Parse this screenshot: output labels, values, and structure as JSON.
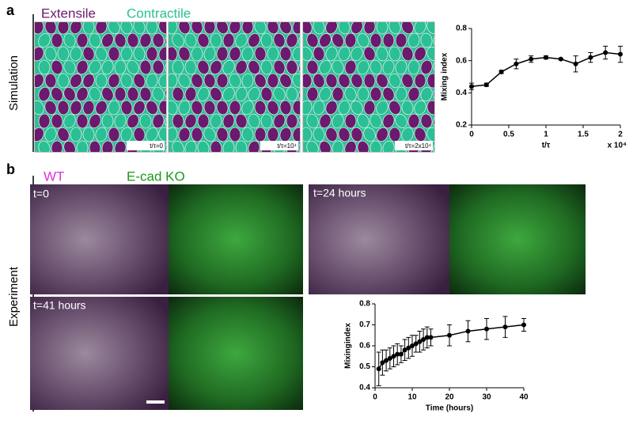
{
  "panel_a": {
    "label": "a",
    "row_title": "Simulation",
    "legend": [
      {
        "name": "Extensile",
        "color": "#6b1a6e"
      },
      {
        "name": "Contractile",
        "color": "#2bbf95"
      }
    ],
    "snapshots": [
      "t/τ=0",
      "t/τ=10⁴",
      "t/τ=2x10⁴"
    ]
  },
  "panel_b": {
    "label": "b",
    "row_title": "Experiment",
    "legend": [
      {
        "name": "WT",
        "color": "#e030e0"
      },
      {
        "name": "E-cad KO",
        "color": "#1a9a1a"
      }
    ],
    "snapshots": [
      "t=0",
      "t=24 hours",
      "t=41 hours"
    ]
  },
  "chart_data": [
    {
      "type": "line",
      "x_label": "t/τ",
      "y_label": "Mixing index",
      "x_multiplier": "x 10⁴",
      "color": "#000000",
      "x": [
        0,
        0.2,
        0.4,
        0.6,
        0.8,
        1.0,
        1.2,
        1.4,
        1.6,
        1.8,
        2.0
      ],
      "values": [
        0.44,
        0.45,
        0.53,
        0.58,
        0.61,
        0.62,
        0.61,
        0.58,
        0.62,
        0.65,
        0.64
      ],
      "errors": [
        0.02,
        0.01,
        0.01,
        0.03,
        0.02,
        0.01,
        0.005,
        0.05,
        0.03,
        0.04,
        0.05
      ],
      "xlim": [
        0,
        2
      ],
      "xticks": [
        0,
        0.5,
        1,
        1.5,
        2
      ],
      "ylim": [
        0.2,
        0.8
      ],
      "yticks": [
        0.2,
        0.4,
        0.6,
        0.8
      ]
    },
    {
      "type": "line",
      "x_label": "Time (hours)",
      "y_label": "Mixingindex",
      "color": "#000000",
      "x": [
        1,
        2,
        3,
        4,
        5,
        6,
        7,
        8,
        9,
        10,
        11,
        12,
        13,
        14,
        15,
        20,
        25,
        30,
        35,
        40
      ],
      "values": [
        0.49,
        0.52,
        0.53,
        0.54,
        0.55,
        0.56,
        0.56,
        0.58,
        0.59,
        0.6,
        0.61,
        0.62,
        0.63,
        0.64,
        0.64,
        0.65,
        0.67,
        0.68,
        0.69,
        0.7
      ],
      "errors": [
        0.08,
        0.06,
        0.05,
        0.05,
        0.05,
        0.05,
        0.04,
        0.05,
        0.05,
        0.05,
        0.04,
        0.05,
        0.05,
        0.05,
        0.04,
        0.05,
        0.05,
        0.05,
        0.05,
        0.03
      ],
      "xlim": [
        0,
        40
      ],
      "xticks": [
        0,
        10,
        20,
        30,
        40
      ],
      "ylim": [
        0.4,
        0.8
      ],
      "yticks": [
        0.4,
        0.5,
        0.6,
        0.7,
        0.8
      ]
    }
  ]
}
